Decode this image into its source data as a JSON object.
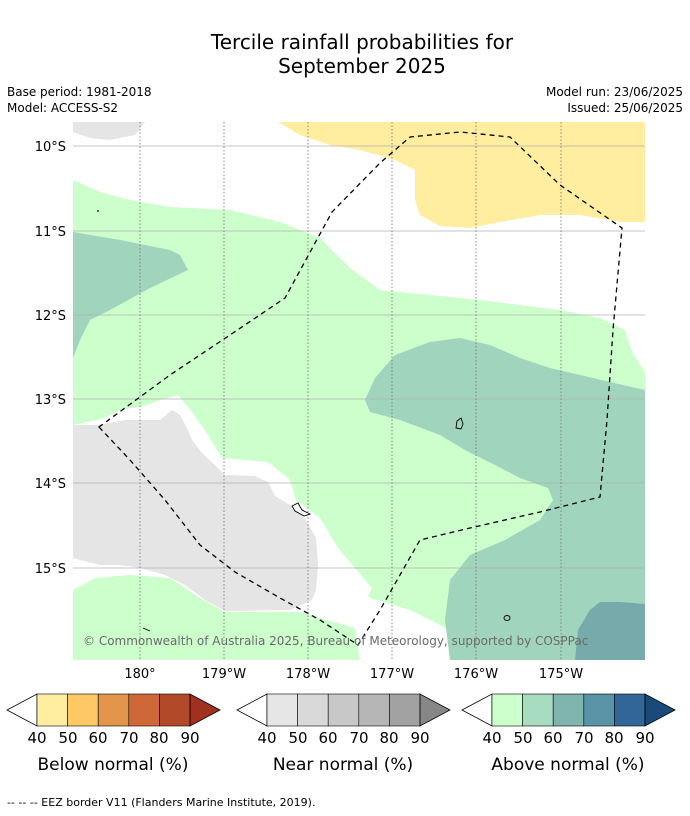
{
  "title": {
    "line1": "Tercile rainfall probabilities for",
    "line2": "September 2025"
  },
  "meta_left": {
    "base_period": "Base period: 1981-2018",
    "model": "Model: ACCESS-S2"
  },
  "meta_right": {
    "model_run": "Model run: 23/06/2025",
    "issued": "Issued: 25/06/2025"
  },
  "map": {
    "lat_labels": [
      "10°S",
      "11°S",
      "12°S",
      "13°S",
      "14°S",
      "15°S"
    ],
    "lon_labels": [
      "180°",
      "179°W",
      "178°W",
      "177°W",
      "176°W",
      "175°W"
    ],
    "copyright": "© Commonwealth of Australia 2025, Bureau of Meteorology, supported by COSPPac",
    "colors": {
      "below_40": "#ffeda0",
      "near_40": "#e5e5e5",
      "above_40": "#ccffcc",
      "above_50": "#a1d4bc",
      "above_60": "#77aaaa"
    }
  },
  "colorbars": [
    {
      "label": "Below normal (%)",
      "ticks": [
        "40",
        "50",
        "60",
        "70",
        "80",
        "90"
      ],
      "colors": [
        "#ffeda0",
        "#fec965",
        "#e3954c",
        "#cf6838",
        "#b24a2a",
        "#a03020"
      ]
    },
    {
      "label": "Near normal (%)",
      "ticks": [
        "40",
        "50",
        "60",
        "70",
        "80",
        "90"
      ],
      "colors": [
        "#e6e6e6",
        "#d9d9d9",
        "#c8c8c8",
        "#b6b6b6",
        "#a2a2a2",
        "#878787"
      ]
    },
    {
      "label": "Above normal (%)",
      "ticks": [
        "40",
        "50",
        "60",
        "70",
        "80",
        "90"
      ],
      "colors": [
        "#ccffcc",
        "#a8dcc0",
        "#80b4ae",
        "#5893a6",
        "#326598",
        "#1a4a7a"
      ]
    }
  ],
  "footer": "--  --  -- EEZ border V11 (Flanders Marine Institute, 2019)."
}
